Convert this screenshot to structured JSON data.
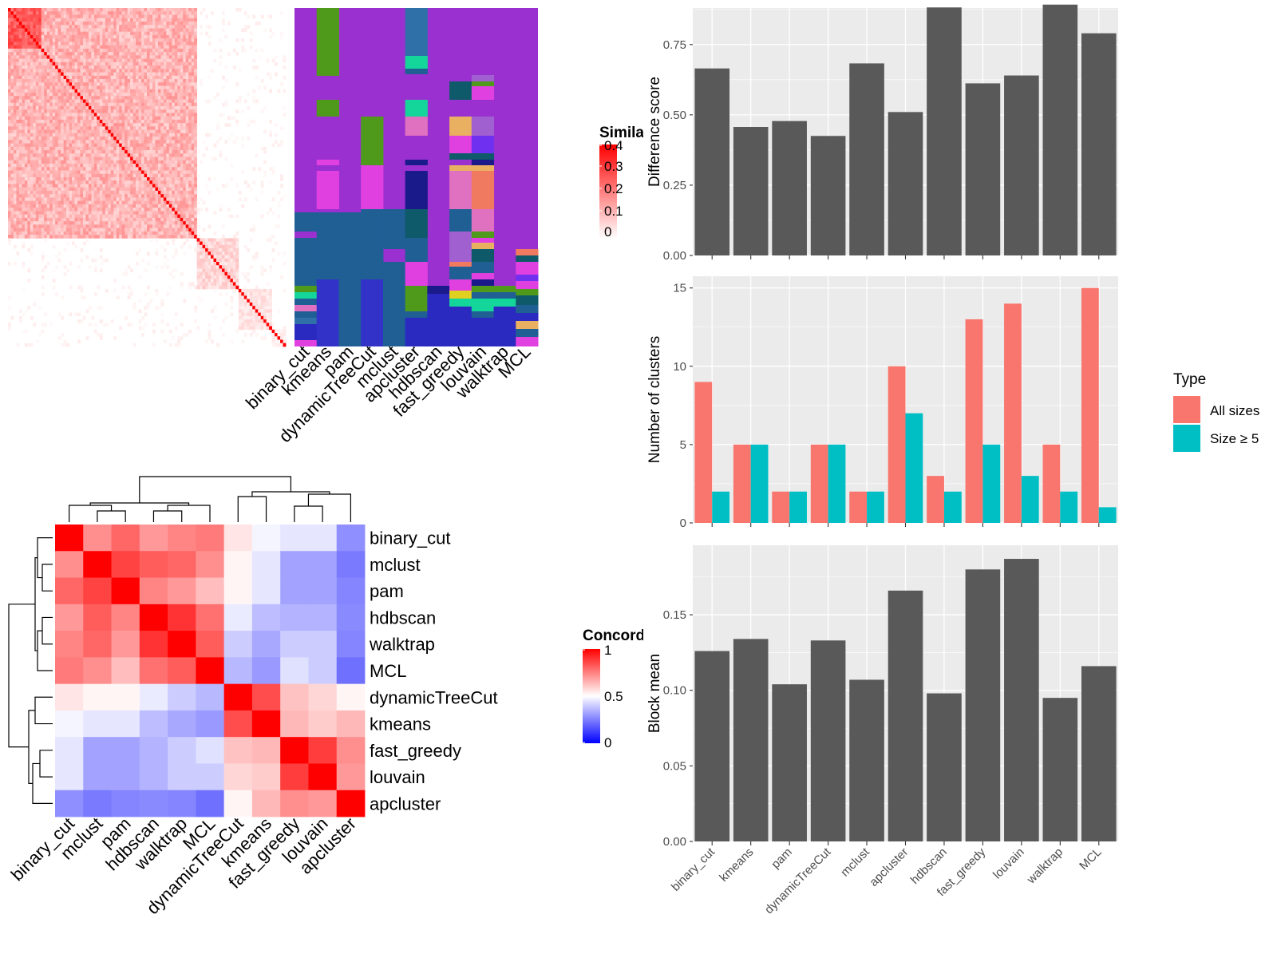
{
  "colors": {
    "panel_bg": "#ebebeb",
    "grid": "#ffffff",
    "bar_gray": "#595959",
    "all_sizes": "#f8766d",
    "size_ge_5": "#00bfc4",
    "heat_high": "#ff0000",
    "heat_mid": "#ffffff",
    "heat_low": "#0000ff",
    "membership_palette": [
      "#9b30d0",
      "#4f9a1b",
      "#1f5f94",
      "#2f70a8",
      "#15d69a",
      "#e040e0",
      "#e070c0",
      "#e8b060",
      "#a060d0",
      "#7030f0",
      "#1a1a8a",
      "#0f5a6a",
      "#f07a60",
      "#3232c8",
      "#e0d020",
      "#2a2ac0",
      "#e06a6a"
    ]
  },
  "similarity_heatmap": {
    "legend_title": "Similarity",
    "legend_ticks": [
      "0.4",
      "0.3",
      "0.2",
      "0.1",
      "0"
    ],
    "n_terms": 100
  },
  "membership": {
    "methods": [
      "binary_cut",
      "kmeans",
      "pam",
      "dynamicTreeCut",
      "mclust",
      "apcluster",
      "hdbscan",
      "fast_greedy",
      "louvain",
      "walktrap",
      "MCL"
    ]
  },
  "concordance": {
    "legend_title": "Concordance",
    "legend_ticks": [
      "1",
      "0.5",
      "0"
    ],
    "row_labels": [
      "binary_cut",
      "mclust",
      "pam",
      "hdbscan",
      "walktrap",
      "MCL",
      "dynamicTreeCut",
      "kmeans",
      "fast_greedy",
      "louvain",
      "apcluster"
    ],
    "col_labels": [
      "binary_cut",
      "mclust",
      "pam",
      "hdbscan",
      "walktrap",
      "MCL",
      "dynamicTreeCut",
      "kmeans",
      "fast_greedy",
      "louvain",
      "apcluster"
    ]
  },
  "chart_data": [
    {
      "type": "heatmap",
      "title": "",
      "categories": [
        "binary_cut",
        "mclust",
        "pam",
        "hdbscan",
        "walktrap",
        "MCL",
        "dynamicTreeCut",
        "kmeans",
        "fast_greedy",
        "louvain",
        "apcluster"
      ],
      "values": [
        [
          1.0,
          0.72,
          0.8,
          0.7,
          0.74,
          0.76,
          0.55,
          0.48,
          0.45,
          0.45,
          0.28
        ],
        [
          0.72,
          1.0,
          0.87,
          0.82,
          0.8,
          0.72,
          0.52,
          0.45,
          0.32,
          0.32,
          0.24
        ],
        [
          0.8,
          0.87,
          1.0,
          0.74,
          0.7,
          0.63,
          0.52,
          0.45,
          0.32,
          0.32,
          0.26
        ],
        [
          0.7,
          0.82,
          0.74,
          1.0,
          0.9,
          0.78,
          0.46,
          0.37,
          0.35,
          0.35,
          0.27
        ],
        [
          0.74,
          0.8,
          0.7,
          0.9,
          1.0,
          0.82,
          0.4,
          0.33,
          0.4,
          0.4,
          0.26
        ],
        [
          0.76,
          0.72,
          0.63,
          0.78,
          0.82,
          1.0,
          0.36,
          0.3,
          0.44,
          0.4,
          0.22
        ],
        [
          0.55,
          0.52,
          0.52,
          0.46,
          0.4,
          0.36,
          1.0,
          0.85,
          0.62,
          0.58,
          0.52
        ],
        [
          0.48,
          0.45,
          0.45,
          0.37,
          0.33,
          0.3,
          0.85,
          1.0,
          0.64,
          0.6,
          0.64
        ],
        [
          0.45,
          0.32,
          0.32,
          0.35,
          0.4,
          0.44,
          0.62,
          0.64,
          1.0,
          0.88,
          0.72
        ],
        [
          0.45,
          0.32,
          0.32,
          0.35,
          0.4,
          0.4,
          0.58,
          0.6,
          0.88,
          1.0,
          0.7
        ],
        [
          0.28,
          0.24,
          0.26,
          0.27,
          0.26,
          0.22,
          0.52,
          0.64,
          0.72,
          0.7,
          1.0
        ]
      ],
      "xlabel": "",
      "ylabel": "",
      "legend_title": "Concordance"
    },
    {
      "type": "bar",
      "title": "",
      "categories": [
        "binary_cut",
        "kmeans",
        "pam",
        "dynamicTreeCut",
        "mclust",
        "apcluster",
        "hdbscan",
        "fast_greedy",
        "louvain",
        "walktrap",
        "MCL"
      ],
      "values": [
        0.665,
        0.457,
        0.478,
        0.425,
        0.683,
        0.51,
        0.882,
        0.612,
        0.64,
        0.892,
        0.79
      ],
      "xlabel": "",
      "ylabel": "Difference score",
      "ylim": [
        0,
        0.88
      ],
      "yticks": [
        "0.00",
        "0.25",
        "0.50",
        "0.75"
      ],
      "grid": true
    },
    {
      "type": "bar",
      "title": "",
      "categories": [
        "binary_cut",
        "kmeans",
        "pam",
        "dynamicTreeCut",
        "mclust",
        "apcluster",
        "hdbscan",
        "fast_greedy",
        "louvain",
        "walktrap",
        "MCL"
      ],
      "series": [
        {
          "name": "All sizes",
          "values": [
            9,
            5,
            2,
            5,
            2,
            10,
            3,
            13,
            14,
            5,
            15
          ]
        },
        {
          "name": "Size ≥ 5",
          "values": [
            2,
            5,
            2,
            5,
            2,
            7,
            2,
            5,
            3,
            2,
            1
          ]
        }
      ],
      "xlabel": "",
      "ylabel": "Number of clusters",
      "ylim": [
        0,
        15.75
      ],
      "yticks": [
        "0",
        "5",
        "10",
        "15"
      ],
      "legend_title": "Type",
      "legend_position": "right",
      "grid": true
    },
    {
      "type": "bar",
      "title": "",
      "categories": [
        "binary_cut",
        "kmeans",
        "pam",
        "dynamicTreeCut",
        "mclust",
        "apcluster",
        "hdbscan",
        "fast_greedy",
        "louvain",
        "walktrap",
        "MCL"
      ],
      "values": [
        0.126,
        0.134,
        0.104,
        0.133,
        0.107,
        0.166,
        0.098,
        0.18,
        0.187,
        0.095,
        0.116
      ],
      "xlabel": "",
      "ylabel": "Block mean",
      "ylim": [
        0,
        0.196
      ],
      "yticks": [
        "0.00",
        "0.05",
        "0.10",
        "0.15"
      ],
      "grid": true
    }
  ]
}
